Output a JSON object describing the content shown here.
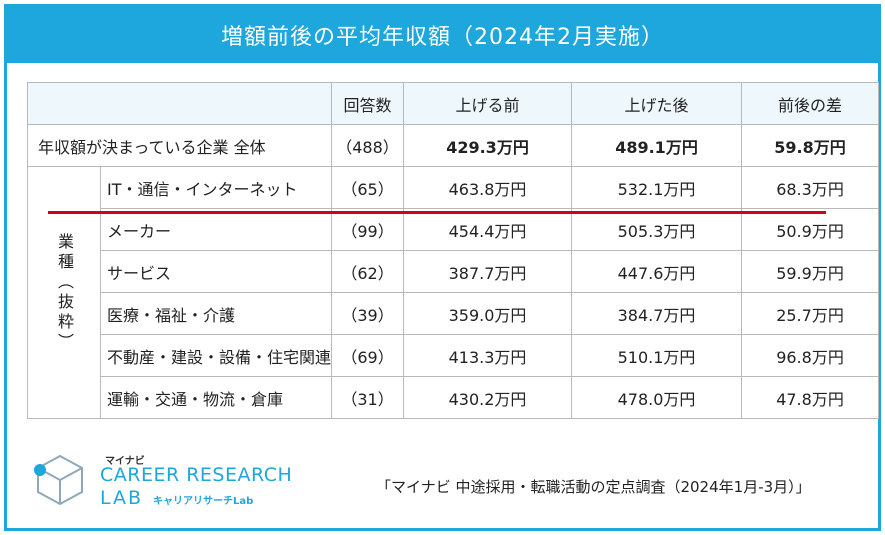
{
  "title": "増額前後の平均年収額（2024年2月実施）",
  "headers": {
    "respondents": "回答数",
    "before": "上げる前",
    "after": "上げた後",
    "diff": "前後の差"
  },
  "total": {
    "label": "年収額が決まっている企業 全体",
    "respondents": "（488）",
    "before": "429.3万円",
    "after": "489.1万円",
    "diff": "59.8万円"
  },
  "group_label": "業種（抜粋）",
  "rows": [
    {
      "label": "IT・通信・インターネット",
      "respondents": "（65）",
      "before": "463.8万円",
      "after": "532.1万円",
      "diff": "68.3万円"
    },
    {
      "label": "メーカー",
      "respondents": "（99）",
      "before": "454.4万円",
      "after": "505.3万円",
      "diff": "50.9万円"
    },
    {
      "label": "サービス",
      "respondents": "（62）",
      "before": "387.7万円",
      "after": "447.6万円",
      "diff": "59.9万円"
    },
    {
      "label": "医療・福祉・介護",
      "respondents": "（39）",
      "before": "359.0万円",
      "after": "384.7万円",
      "diff": "25.7万円"
    },
    {
      "label": "不動産・建設・設備・住宅関連",
      "respondents": "（69）",
      "before": "413.3万円",
      "after": "510.1万円",
      "diff": "96.8万円"
    },
    {
      "label": "運輸・交通・物流・倉庫",
      "respondents": "（31）",
      "before": "430.2万円",
      "after": "478.0万円",
      "diff": "47.8万円"
    }
  ],
  "logo": {
    "brand": "マイナビ",
    "line1": "CAREER RESEARCH",
    "line2": "LAB",
    "sub": "キャリアリサーチLab"
  },
  "source": "「マイナビ 中途採用・転職活動の定点調査（2024年1月-3月）」",
  "colors": {
    "accent": "#1ea7dc",
    "highlight": "#d4001b"
  }
}
